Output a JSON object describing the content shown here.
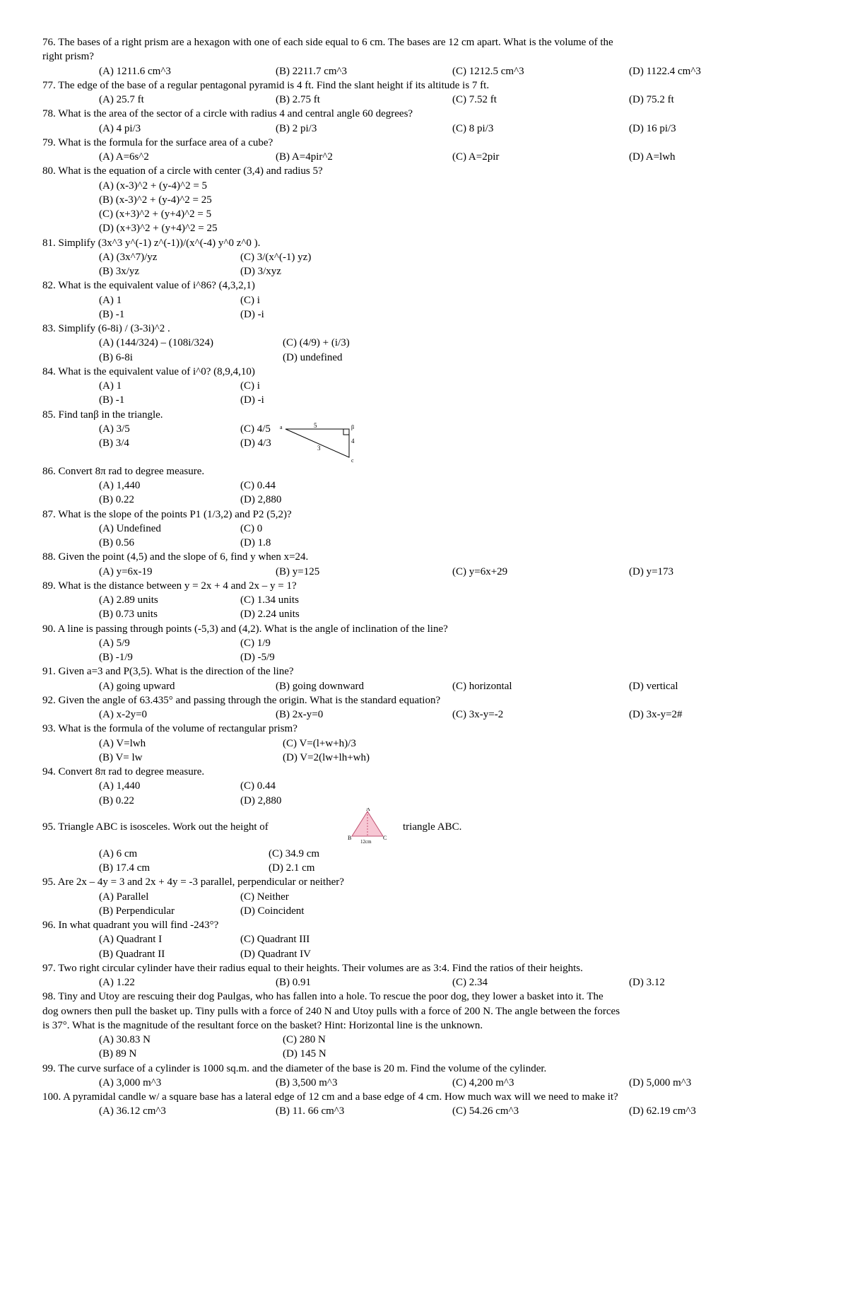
{
  "questions": [
    {
      "num": "76",
      "text": "The bases of a right prism are a hexagon with one of each side equal to 6 cm. The bases are 12 cm apart. What is the volume of the",
      "text2": "right prism?",
      "opts": [
        "(A) 1211.6 cm^3",
        "(B) 2211.7 cm^3",
        "(C) 1212.5 cm^3",
        "(D) 1122.4 cm^3"
      ]
    },
    {
      "num": "77",
      "text": "The edge of the base of a regular pentagonal pyramid is 4 ft. Find the slant height if its altitude is 7 ft.",
      "opts": [
        "(A) 25.7 ft",
        "(B) 2.75 ft",
        "(C) 7.52 ft",
        "(D) 75.2 ft"
      ]
    },
    {
      "num": "78",
      "text": "What is the area of the sector of a circle with radius 4 and central angle 60 degrees?",
      "opts": [
        "(A) 4 pi/3",
        "(B) 2 pi/3",
        "(C) 8 pi/3",
        "(D) 16 pi/3"
      ]
    },
    {
      "num": "79",
      "text": "What is the formula for the surface area of a cube?",
      "opts": [
        "(A) A=6s^2",
        "(B) A=4pir^2",
        "(C) A=2pir",
        "(D) A=lwh"
      ]
    },
    {
      "num": "80",
      "text": "What is the equation of a circle with center (3,4) and radius 5?",
      "vopts": [
        "(A) (x-3)^2 + (y-4)^2 = 5",
        "(B) (x-3)^2 + (y-4)^2 = 25",
        "(C) (x+3)^2 + (y+4)^2 = 5",
        "(D) (x+3)^2 + (y+4)^2 = 25"
      ]
    },
    {
      "num": "81",
      "text": "Simplify (3x^3 y^(-1) z^(-1))/(x^(-4) y^0 z^0 ).",
      "grid": [
        [
          "(A) (3x^7)/yz",
          "(C) 3/(x^(-1) yz)"
        ],
        [
          "(B) 3x/yz",
          "(D) 3/xyz"
        ]
      ]
    },
    {
      "num": "82",
      "text": "What is the equivalent value of i^86? (4,3,2,1)",
      "grid": [
        [
          "(A) 1",
          "(C) i"
        ],
        [
          "(B) -1",
          "(D) -i"
        ]
      ]
    },
    {
      "num": "83",
      "text": "Simplify (6-8i) / (3-3i)^2 .",
      "grid": [
        [
          "(A) (144/324) – (108i/324)",
          "(C) (4/9) + (i/3)"
        ],
        [
          "(B) 6-8i",
          "(D) undefined"
        ]
      ]
    },
    {
      "num": "84",
      "text": "What is the equivalent value of i^0? (8,9,4,10)",
      "grid": [
        [
          "(A) 1",
          "(C) i"
        ],
        [
          "(B) -1",
          "(D) -i"
        ]
      ]
    },
    {
      "num": "85",
      "text": "Find tanβ in the triangle.",
      "grid": [
        [
          "(A) 3/5",
          "(C) 4/5"
        ],
        [
          "(B) 3/4",
          "(D) 4/3"
        ]
      ],
      "triangle1": true,
      "tri1": {
        "labels": [
          "5",
          "3",
          "4"
        ]
      }
    },
    {
      "num": "86",
      "text": "Convert 8π rad to degree measure.",
      "grid": [
        [
          "(A) 1,440",
          "(C) 0.44"
        ],
        [
          "(B) 0.22",
          "(D) 2,880"
        ]
      ]
    },
    {
      "num": "87",
      "text": "What is the slope of the points P1 (1/3,2) and P2 (5,2)?",
      "grid": [
        [
          "(A) Undefined",
          "(C) 0"
        ],
        [
          "(B) 0.56",
          "(D) 1.8"
        ]
      ]
    },
    {
      "num": "88",
      "text": "Given the point (4,5) and the slope of 6, find y when x=24.",
      "opts": [
        "(A) y=6x-19",
        "(B) y=125",
        "(C) y=6x+29",
        "(D) y=173"
      ]
    },
    {
      "num": "89",
      "text": "What is the distance between y = 2x + 4 and 2x – y = 1?",
      "grid": [
        [
          "(A) 2.89 units",
          "(C) 1.34 units"
        ],
        [
          "(B) 0.73 units",
          "(D) 2.24 units"
        ]
      ]
    },
    {
      "num": "90",
      "text": "A line is passing through points (-5,3) and (4,2). What is the angle of inclination of the line?",
      "grid": [
        [
          "(A) 5/9",
          "(C) 1/9"
        ],
        [
          "(B) -1/9",
          "(D) -5/9"
        ]
      ]
    },
    {
      "num": "91",
      "text": "Given a=3 and P(3,5). What is the direction of the line?",
      "opts": [
        "(A) going upward",
        "(B) going downward",
        "(C) horizontal",
        "(D) vertical"
      ]
    },
    {
      "num": "92",
      "text": "Given the angle of 63.435° and passing through the origin. What is the standard equation?",
      "opts": [
        "(A) x-2y=0",
        "(B) 2x-y=0",
        "(C) 3x-y=-2",
        "(D) 3x-y=2#"
      ]
    },
    {
      "num": "93",
      "text": "What is the formula of the volume of rectangular prism?",
      "grid": [
        [
          "(A) V=lwh",
          "(C) V=(l+w+h)/3"
        ],
        [
          "(B) V= lw",
          "(D) V=2(lw+lh+wh)"
        ]
      ]
    },
    {
      "num": "94",
      "text": "Convert 8π rad to degree measure.",
      "grid": [
        [
          "(A) 1,440",
          "(C) 0.44"
        ],
        [
          "(B) 0.22",
          "(D) 2,880"
        ]
      ]
    },
    {
      "num": "95",
      "text": "Triangle ABC is isosceles. Work out the height of",
      "text_after": "triangle ABC.",
      "grid": [
        [
          "(A) 6 cm",
          "(C) 34.9 cm"
        ],
        [
          "(B) 17.4 cm",
          "(D) 2.1 cm"
        ]
      ],
      "triangle2": true,
      "tri2": {
        "base_label": "12cm",
        "top": "A",
        "left": "B",
        "right": "C"
      }
    },
    {
      "num": "95b",
      "displaynum": "95",
      "text": "Are 2x – 4y = 3 and 2x + 4y = -3 parallel, perpendicular or neither?",
      "grid": [
        [
          "(A) Parallel",
          "(C) Neither"
        ],
        [
          "(B) Perpendicular",
          "(D) Coincident"
        ]
      ]
    },
    {
      "num": "96",
      "text": "In what quadrant you will find -243°?",
      "grid": [
        [
          "(A) Quadrant I",
          "(C) Quadrant III"
        ],
        [
          "(B) Quadrant II",
          "(D) Quadrant IV"
        ]
      ]
    },
    {
      "num": "97",
      "text": "Two right circular cylinder have their radius equal to their heights. Their volumes are as 3:4. Find the ratios of their heights.",
      "opts": [
        "(A) 1.22",
        "(B) 0.91",
        "(C) 2.34",
        "(D) 3.12"
      ]
    },
    {
      "num": "98",
      "text": "Tiny and Utoy are rescuing their dog Paulgas, who has fallen into a hole. To rescue the poor dog, they lower a basket into it. The",
      "text2": "dog owners then pull the basket up. Tiny pulls with a force of 240 N and Utoy pulls with a force of 200 N. The angle between the forces",
      "text3": "is 37°. What is the magnitude of the resultant force on the basket? Hint: Horizontal line is the unknown.",
      "grid": [
        [
          "(A) 30.83 N",
          "(C) 280 N"
        ],
        [
          "(B) 89 N",
          "(D) 145 N"
        ]
      ]
    },
    {
      "num": "99",
      "text": "The curve surface of a cylinder is 1000 sq.m. and the diameter of the base is 20 m. Find the volume of the cylinder.",
      "opts": [
        "(A) 3,000 m^3",
        "(B) 3,500 m^3",
        "(C) 4,200 m^3",
        "(D) 5,000 m^3"
      ]
    },
    {
      "num": "100",
      "text": "A pyramidal candle w/ a square base has a lateral edge of 12 cm and a base edge of 4 cm. How much wax will we need to make it?",
      "opts": [
        "(A) 36.12 cm^3",
        "(B) 11. 66 cm^3",
        "(C) 54.26 cm^3",
        "(D) 62.19 cm^3"
      ]
    }
  ],
  "style": {
    "grid_col1_width": 200,
    "grid_col2_width": 200,
    "grid_col1_wide": 260
  }
}
